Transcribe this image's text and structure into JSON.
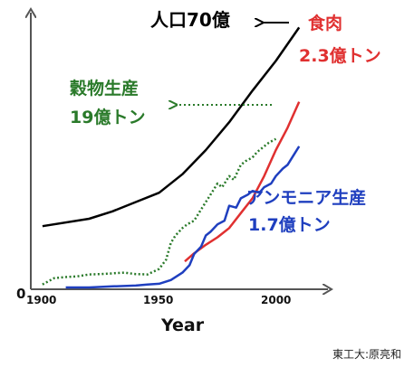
{
  "chart_data": {
    "type": "line",
    "xlabel": "Year",
    "x_ticks": [
      "1900",
      "1950",
      "2000"
    ],
    "origin_label": "0",
    "xlim": [
      1895,
      2020
    ],
    "ylim": [
      0,
      74
    ],
    "series": [
      {
        "key": "population",
        "labels": [
          "人口70億"
        ],
        "color": "#000000",
        "style": "solid",
        "x": [
          1900,
          1920,
          1930,
          1940,
          1950,
          1960,
          1970,
          1980,
          1990,
          2000,
          2010
        ],
        "y": [
          16.5,
          18.5,
          20.5,
          23,
          25.5,
          30.5,
          37,
          44.5,
          53,
          61,
          70
        ]
      },
      {
        "key": "meat",
        "labels": [
          "食肉",
          "2.3億トン"
        ],
        "color": "#e03030",
        "style": "solid",
        "x": [
          1961,
          1965,
          1970,
          1975,
          1980,
          1985,
          1990,
          1995,
          2000,
          2005,
          2010
        ],
        "y": [
          7,
          9.2,
          11.5,
          13.5,
          16,
          20,
          24,
          30,
          37,
          43,
          50
        ]
      },
      {
        "key": "grain",
        "labels": [
          "穀物生産",
          "19億トン"
        ],
        "color": "#2a7a2a",
        "style": "dotted",
        "x": [
          1900,
          1905,
          1910,
          1915,
          1920,
          1925,
          1930,
          1935,
          1940,
          1945,
          1950,
          1953,
          1955,
          1957,
          1960,
          1962,
          1965,
          1968,
          1970,
          1972,
          1975,
          1977,
          1980,
          1982,
          1985,
          1987,
          1990,
          1992,
          1995,
          1997,
          2000
        ],
        "y": [
          0.8,
          2.5,
          2.8,
          3,
          3.5,
          3.6,
          3.8,
          4,
          3.6,
          3.5,
          5,
          7.5,
          12,
          14,
          16,
          17,
          18,
          21,
          23,
          25,
          28,
          27,
          30,
          29,
          33,
          34,
          35,
          36.5,
          38,
          39,
          40
        ]
      },
      {
        "key": "ammonia",
        "labels": [
          "アンモニア生産",
          "1.7億トン"
        ],
        "color": "#1f3fbf",
        "style": "solid",
        "x": [
          1910,
          1920,
          1930,
          1940,
          1945,
          1950,
          1955,
          1960,
          1963,
          1965,
          1968,
          1970,
          1972,
          1975,
          1978,
          1980,
          1983,
          1985,
          1988,
          1990,
          1993,
          1995,
          1998,
          2000,
          2003,
          2005,
          2008,
          2010
        ],
        "y": [
          0,
          0,
          0.3,
          0.5,
          0.8,
          1,
          2,
          4,
          6,
          9,
          11,
          14,
          15,
          17,
          18,
          22,
          21.5,
          24,
          25,
          26,
          25.5,
          27,
          28,
          30,
          32,
          33,
          36,
          38
        ]
      }
    ],
    "annotations": [
      {
        "type": "arrow",
        "from_series": "population",
        "direction": "left"
      },
      {
        "type": "dotted-arrow",
        "from_series": "grain",
        "direction": "left"
      }
    ]
  },
  "credit": "東工大:原亮和"
}
